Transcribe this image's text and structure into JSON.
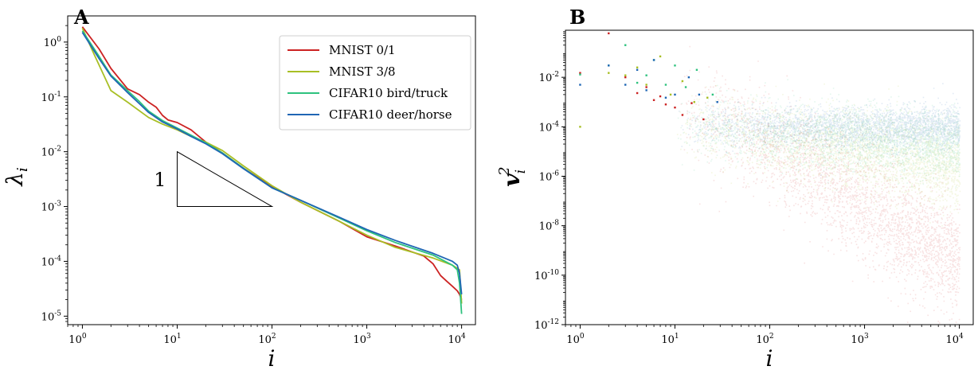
{
  "figure": {
    "panel_a_letter": "A",
    "panel_b_letter": "B"
  },
  "chart_data": [
    {
      "type": "line",
      "panel": "A",
      "xscale": "log",
      "yscale": "log",
      "xlim": [
        0.7,
        14000
      ],
      "ylim": [
        7e-06,
        3
      ],
      "xlabel": "i",
      "ylabel": "λ_i",
      "x_ticks": [
        1,
        10,
        100,
        1000,
        10000
      ],
      "x_tick_labels": [
        [
          "10",
          "0"
        ],
        [
          "10",
          "1"
        ],
        [
          "10",
          "2"
        ],
        [
          "10",
          "3"
        ],
        [
          "10",
          "4"
        ]
      ],
      "y_ticks": [
        1e-05,
        0.0001,
        0.001,
        0.01,
        0.1,
        1
      ],
      "y_tick_labels": [
        [
          "10",
          "-5"
        ],
        [
          "10",
          "-4"
        ],
        [
          "10",
          "-3"
        ],
        [
          "10",
          "-2"
        ],
        [
          "10",
          "-1"
        ],
        [
          "10",
          "0"
        ]
      ],
      "grid": false,
      "legend_position": "top-right",
      "slope_triangle": {
        "label": "1",
        "x": [
          10,
          100
        ],
        "y": [
          0.001,
          0.01
        ]
      },
      "series": [
        {
          "name": "MNIST 0/1",
          "color": "#cc2222",
          "x": [
            1,
            1.5,
            2,
            3,
            4,
            5,
            6,
            7,
            8,
            10,
            14,
            20,
            30,
            50,
            100,
            200,
            500,
            1000,
            2000,
            4000,
            5000,
            6000,
            7000,
            8000,
            9000,
            9500,
            10000
          ],
          "y": [
            1.9,
            0.75,
            0.33,
            0.14,
            0.11,
            0.08,
            0.065,
            0.046,
            0.038,
            0.034,
            0.025,
            0.015,
            0.0095,
            0.005,
            0.0023,
            0.0012,
            0.00055,
            0.00028,
            0.00019,
            0.000125,
            9e-05,
            5.5e-05,
            4.3e-05,
            3.5e-05,
            2.9e-05,
            2.5e-05,
            2e-05
          ]
        },
        {
          "name": "MNIST 3/8",
          "color": "#a8bf25",
          "x": [
            1,
            1.3,
            2,
            3,
            5,
            7,
            10,
            14,
            20,
            30,
            50,
            100,
            200,
            500,
            1000,
            2000,
            5000,
            8000,
            9500,
            10000
          ],
          "y": [
            1.8,
            0.65,
            0.13,
            0.08,
            0.042,
            0.032,
            0.025,
            0.019,
            0.015,
            0.0105,
            0.0055,
            0.0024,
            0.0012,
            0.00055,
            0.0003,
            0.00018,
            0.000115,
            8.5e-05,
            7e-05,
            1.7e-05
          ]
        },
        {
          "name": "CIFAR10 bird/truck",
          "color": "#2ec27e",
          "x": [
            1,
            1.5,
            2,
            3,
            4,
            5,
            7,
            10,
            14,
            20,
            30,
            50,
            100,
            200,
            500,
            1000,
            2000,
            5000,
            8000,
            9000,
            9500,
            10000
          ],
          "y": [
            1.6,
            0.55,
            0.25,
            0.13,
            0.082,
            0.055,
            0.037,
            0.027,
            0.02,
            0.0145,
            0.0095,
            0.005,
            0.0022,
            0.0013,
            0.00063,
            0.00036,
            0.00022,
            0.00013,
            8.5e-05,
            7e-05,
            4e-05,
            1.1e-05
          ]
        },
        {
          "name": "CIFAR10 deer/horse",
          "color": "#1f66b4",
          "x": [
            1,
            1.5,
            2,
            3,
            4,
            5,
            7,
            10,
            14,
            20,
            30,
            50,
            100,
            200,
            500,
            1000,
            2000,
            5000,
            8000,
            9000,
            9500,
            10000
          ],
          "y": [
            1.5,
            0.5,
            0.24,
            0.12,
            0.075,
            0.052,
            0.035,
            0.026,
            0.019,
            0.014,
            0.0092,
            0.0049,
            0.0022,
            0.0013,
            0.00065,
            0.00038,
            0.00024,
            0.00014,
            0.0001,
            8.5e-05,
            6e-05,
            2.5e-05
          ]
        }
      ]
    },
    {
      "type": "scatter",
      "panel": "B",
      "xscale": "log",
      "yscale": "log",
      "xlim": [
        0.7,
        14000
      ],
      "ylim": [
        1e-12,
        0.8
      ],
      "xlabel": "i",
      "ylabel": "v_i^2",
      "x_ticks": [
        1,
        10,
        100,
        1000,
        10000
      ],
      "x_tick_labels": [
        [
          "10",
          "0"
        ],
        [
          "10",
          "1"
        ],
        [
          "10",
          "2"
        ],
        [
          "10",
          "3"
        ],
        [
          "10",
          "4"
        ]
      ],
      "y_ticks": [
        1e-12,
        1e-10,
        1e-08,
        1e-06,
        0.0001,
        0.01
      ],
      "y_tick_labels": [
        [
          "10",
          "-12"
        ],
        [
          "10",
          "-10"
        ],
        [
          "10",
          "-8"
        ],
        [
          "10",
          "-6"
        ],
        [
          "10",
          "-4"
        ],
        [
          "10",
          "-2"
        ]
      ],
      "grid": false,
      "series": [
        {
          "name": "MNIST 0/1",
          "color": "#cc2222",
          "x": [
            1,
            2,
            3,
            4,
            5,
            6,
            7,
            8,
            10,
            12,
            15,
            20
          ],
          "y": [
            0.015,
            0.6,
            0.01,
            0.0023,
            0.004,
            0.0012,
            0.0017,
            0.0008,
            0.0006,
            0.0003,
            0.0009,
            0.0002
          ],
          "trend": {
            "median_at_1e2": 1e-05,
            "median_at_1e4": 3e-10,
            "spread_decades": 3.5
          }
        },
        {
          "name": "MNIST 3/8",
          "color": "#a8bf25",
          "x": [
            1,
            2,
            3,
            4,
            5,
            7,
            9,
            12,
            16,
            22
          ],
          "y": [
            0.0001,
            0.015,
            0.012,
            0.025,
            0.005,
            0.07,
            0.002,
            0.007,
            0.001,
            0.0015
          ],
          "trend": {
            "median_at_1e2": 3e-05,
            "median_at_1e4": 2e-06,
            "spread_decades": 2.5
          }
        },
        {
          "name": "CIFAR10 bird/truck",
          "color": "#2ec27e",
          "x": [
            1,
            2,
            3,
            4,
            5,
            6,
            8,
            10,
            13,
            17,
            25
          ],
          "y": [
            0.013,
            0.03,
            0.2,
            0.006,
            0.012,
            0.05,
            0.005,
            0.03,
            0.004,
            0.02,
            0.002
          ],
          "trend": {
            "median_at_1e2": 5e-05,
            "median_at_1e4": 2e-05,
            "spread_decades": 2.0
          }
        },
        {
          "name": "CIFAR10 deer/horse",
          "color": "#1f66b4",
          "x": [
            1,
            2,
            3,
            4,
            5,
            6,
            8,
            10,
            14,
            18,
            28
          ],
          "y": [
            0.005,
            0.03,
            0.005,
            0.02,
            0.003,
            0.05,
            0.0015,
            0.002,
            0.01,
            0.002,
            0.001
          ],
          "trend": {
            "median_at_1e2": 0.0001,
            "median_at_1e4": 0.0001,
            "spread_decades": 1.3
          }
        }
      ]
    }
  ]
}
